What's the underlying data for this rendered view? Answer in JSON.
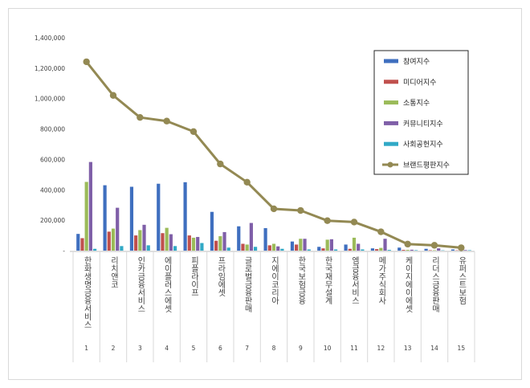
{
  "chart_data": {
    "type": "bar",
    "ylim": [
      0,
      1400000
    ],
    "y_ticks": [
      0,
      200000,
      400000,
      600000,
      800000,
      1000000,
      1200000,
      1400000
    ],
    "y_tick_labels": [
      "-",
      "200,000",
      "400,000",
      "600,000",
      "800,000",
      "1,000,000",
      "1,200,000",
      "1,400,000"
    ],
    "x": [
      "1",
      "2",
      "3",
      "4",
      "5",
      "6",
      "7",
      "8",
      "9",
      "10",
      "11",
      "12",
      "13",
      "14",
      "15"
    ],
    "categories": [
      "한화생명금융서비스",
      "리치앤코",
      "인카금융서비스",
      "에이플러스에셋",
      "피플라이프",
      "프라임에셋",
      "글로벌금융판매",
      "지에이코리아",
      "한국보험금융",
      "한국재무설계",
      "엠금융서비스",
      "메가주식회사",
      "케이지에이에셋",
      "리더스금융판매",
      "유퍼스트보험"
    ],
    "grid": false,
    "legend_position": "right",
    "series": [
      {
        "name": "참여지수",
        "type": "bar",
        "color": "#3f6fbf",
        "values": [
          110000,
          430000,
          420000,
          440000,
          450000,
          255000,
          160000,
          148000,
          60000,
          25000,
          40000,
          15000,
          20000,
          12000,
          8000
        ]
      },
      {
        "name": "미디어지수",
        "type": "bar",
        "color": "#c0504d",
        "values": [
          82000,
          125000,
          100000,
          115000,
          100000,
          65000,
          45000,
          35000,
          40000,
          15000,
          12000,
          10000,
          5000,
          3000,
          2000
        ]
      },
      {
        "name": "소통지수",
        "type": "bar",
        "color": "#9bbb59",
        "values": [
          452000,
          145000,
          135000,
          150000,
          85000,
          95000,
          40000,
          45000,
          78000,
          72000,
          85000,
          18000,
          5000,
          3000,
          4000
        ]
      },
      {
        "name": "커뮤니티지수",
        "type": "bar",
        "color": "#7f5fa8",
        "values": [
          583000,
          282000,
          170000,
          108000,
          90000,
          122000,
          182000,
          28000,
          78000,
          75000,
          45000,
          78000,
          6000,
          15000,
          4000
        ]
      },
      {
        "name": "사회공헌지수",
        "type": "bar",
        "color": "#31a9c6",
        "values": [
          12000,
          30000,
          35000,
          30000,
          50000,
          20000,
          25000,
          12000,
          8000,
          8000,
          8000,
          5000,
          3000,
          2000,
          3000
        ]
      },
      {
        "name": "브랜드평판지수",
        "type": "line",
        "color": "#938953",
        "values": [
          1242000,
          1021000,
          876000,
          852000,
          783000,
          570000,
          450000,
          275000,
          264000,
          197000,
          188000,
          124000,
          43000,
          35000,
          19000
        ]
      }
    ]
  }
}
